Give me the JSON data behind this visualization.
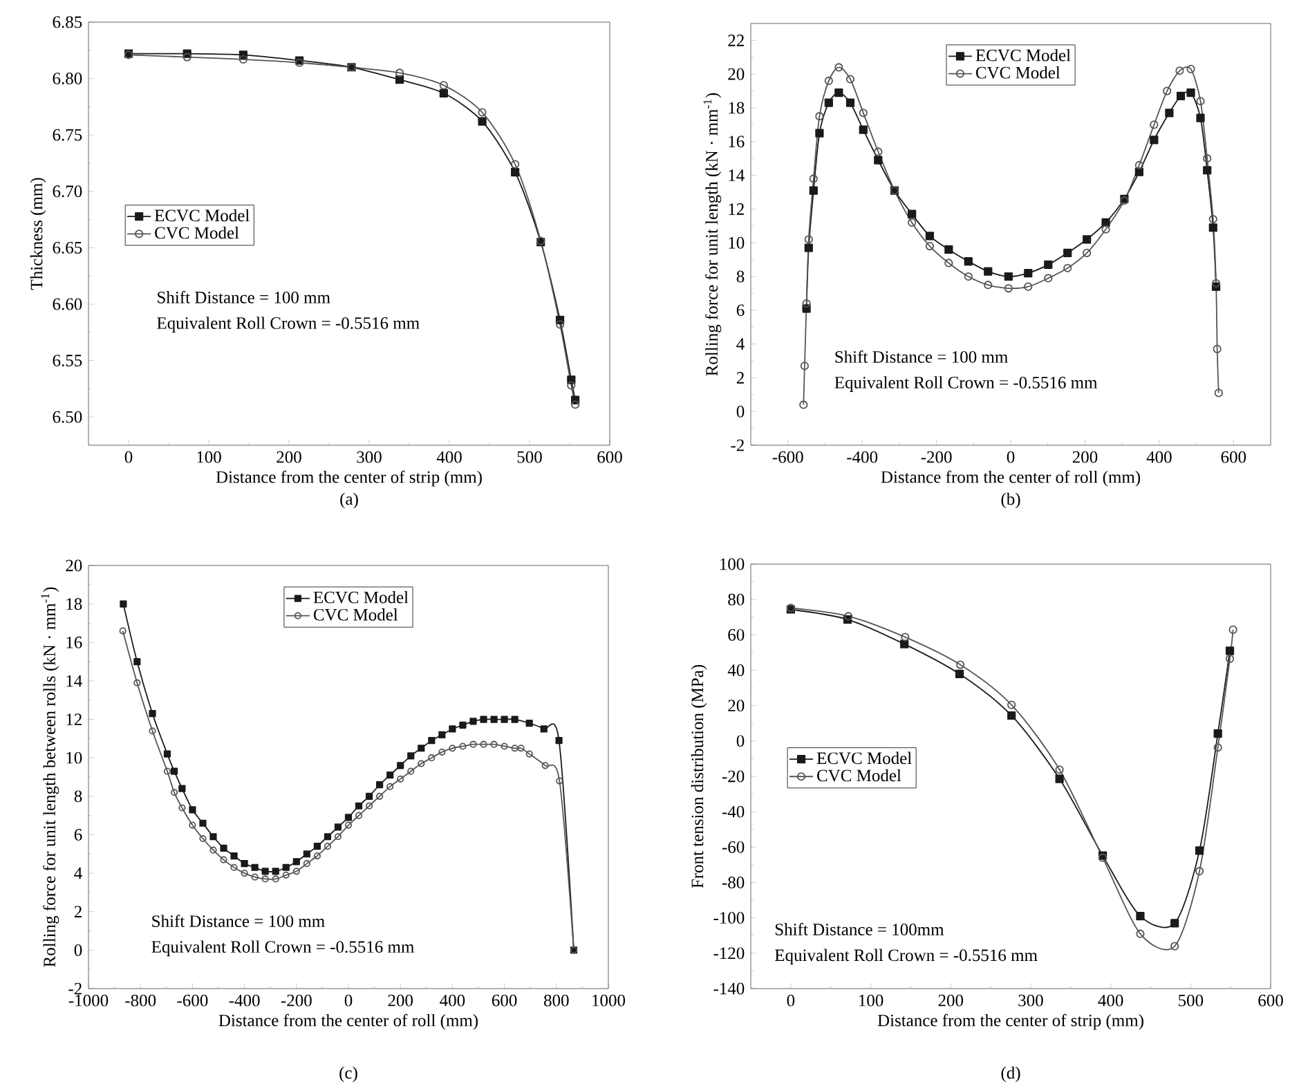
{
  "chart_data": [
    {
      "type": "line",
      "xlabel": "Distance from the center of strip (mm)",
      "ylabel": "Thickness (mm)",
      "xlim": [
        -50,
        600
      ],
      "xticks": [
        0,
        100,
        200,
        300,
        400,
        500,
        600
      ],
      "ylim": [
        6.475,
        6.85
      ],
      "yticks": [
        {
          "value": 6.5,
          "label": "6.50"
        },
        {
          "value": 6.55,
          "label": "6.55"
        },
        {
          "value": 6.6,
          "label": "6.60"
        },
        {
          "value": 6.65,
          "label": "6.65"
        },
        {
          "value": 6.7,
          "label": "6.70"
        },
        {
          "value": 6.75,
          "label": "6.75"
        },
        {
          "value": 6.8,
          "label": "6.80"
        },
        {
          "value": 6.85,
          "label": "6.85"
        }
      ],
      "legend": "center left",
      "annotations": [
        "Shift Distance = 100 mm",
        "Equivalent Roll Crown = -0.5516 mm",
        "(a)"
      ],
      "series": [
        {
          "name": "ECVC Model",
          "color": "#1a1a1a",
          "marker": "square",
          "x": [
            0,
            73,
            143,
            213,
            278,
            338,
            393,
            441,
            482,
            514,
            538,
            552,
            557
          ],
          "values": [
            6.822,
            6.822,
            6.821,
            6.816,
            6.81,
            6.799,
            6.787,
            6.762,
            6.717,
            6.655,
            6.586,
            6.533,
            6.515
          ]
        },
        {
          "name": "CVC Model",
          "color": "#555555",
          "marker": "circle",
          "x": [
            0,
            73,
            143,
            213,
            278,
            338,
            393,
            441,
            482,
            514,
            538,
            552,
            557
          ],
          "values": [
            6.821,
            6.819,
            6.817,
            6.814,
            6.81,
            6.805,
            6.794,
            6.77,
            6.724,
            6.656,
            6.582,
            6.528,
            6.511
          ]
        }
      ]
    },
    {
      "type": "line",
      "xlabel": "Distance from the center of roll (mm)",
      "ylabel": "Rolling force for unit length (kN · mm$^{-1}$)",
      "xlim": [
        -700,
        700
      ],
      "xticks": [
        -600,
        -400,
        -200,
        0,
        200,
        400,
        600
      ],
      "ylim": [
        -2,
        23
      ],
      "yticks": [
        -2,
        0,
        2,
        4,
        6,
        8,
        10,
        12,
        14,
        16,
        18,
        20,
        22
      ],
      "legend": "top",
      "annotations": [
        "Shift Distance = 100 mm",
        "Equivalent Roll Crown = -0.5516 mm",
        "(b)"
      ],
      "series": [
        {
          "name": "ECVC Model",
          "color": "#1a1a1a",
          "marker": "square",
          "x": [
            -550,
            -544,
            -531,
            -515,
            -490,
            -463,
            -432,
            -397,
            -357,
            -313,
            -266,
            -218,
            -167,
            -114,
            -61,
            -6,
            47,
            101,
            153,
            205,
            256,
            306,
            346,
            386,
            427,
            458,
            485,
            511,
            529,
            545,
            553
          ],
          "values": [
            6.1,
            9.7,
            13.1,
            16.5,
            18.3,
            18.9,
            18.3,
            16.7,
            14.9,
            13.1,
            11.7,
            10.4,
            9.6,
            8.9,
            8.3,
            8.0,
            8.2,
            8.7,
            9.4,
            10.2,
            11.2,
            12.6,
            14.2,
            16.1,
            17.7,
            18.7,
            18.9,
            17.4,
            14.3,
            10.9,
            7.4
          ]
        },
        {
          "name": "CVC Model",
          "color": "#555555",
          "marker": "circle",
          "x": [
            -558,
            -555,
            -550,
            -544,
            -531,
            -515,
            -490,
            -463,
            -432,
            -397,
            -357,
            -313,
            -266,
            -218,
            -167,
            -114,
            -61,
            -6,
            47,
            101,
            153,
            205,
            256,
            306,
            346,
            386,
            421,
            455,
            485,
            511,
            529,
            545,
            553,
            556,
            560
          ],
          "values": [
            0.4,
            2.7,
            6.4,
            10.2,
            13.8,
            17.5,
            19.6,
            20.4,
            19.7,
            17.7,
            15.4,
            13.1,
            11.2,
            9.8,
            8.8,
            8.0,
            7.5,
            7.3,
            7.4,
            7.9,
            8.5,
            9.4,
            10.8,
            12.5,
            14.6,
            17.0,
            19.0,
            20.2,
            20.3,
            18.4,
            15.0,
            11.4,
            7.6,
            3.7,
            1.1
          ]
        }
      ]
    },
    {
      "type": "line",
      "xlabel": "Distance from the center of roll (mm)",
      "ylabel": "Rolling force for unit length between rolls (kN · mm$^{-1}$)",
      "xlim": [
        -1000,
        1000
      ],
      "xticks": [
        -1000,
        -800,
        -600,
        -400,
        -200,
        0,
        200,
        400,
        600,
        800,
        1000
      ],
      "ylim": [
        -2,
        20
      ],
      "yticks": [
        -2,
        0,
        2,
        4,
        6,
        8,
        10,
        12,
        14,
        16,
        18,
        20
      ],
      "legend": "top",
      "annotations": [
        "Shift Distance = 100 mm",
        "Equivalent Roll Crown = -0.5516 mm",
        "(c)"
      ],
      "series": [
        {
          "name": "ECVC Model",
          "color": "#1a1a1a",
          "marker": "square",
          "x": [
            -866,
            -813,
            -754,
            -697,
            -670,
            -640,
            -600,
            -560,
            -520,
            -480,
            -440,
            -400,
            -360,
            -320,
            -280,
            -240,
            -200,
            -160,
            -120,
            -80,
            -40,
            0,
            40,
            80,
            120,
            160,
            200,
            240,
            280,
            320,
            360,
            400,
            440,
            480,
            520,
            560,
            600,
            640,
            696,
            752,
            810,
            867
          ],
          "values": [
            18.0,
            15.0,
            12.3,
            10.2,
            9.3,
            8.4,
            7.3,
            6.6,
            5.9,
            5.3,
            4.9,
            4.5,
            4.3,
            4.1,
            4.1,
            4.3,
            4.6,
            5.0,
            5.4,
            5.9,
            6.4,
            6.9,
            7.5,
            8.0,
            8.6,
            9.1,
            9.6,
            10.1,
            10.5,
            10.9,
            11.2,
            11.5,
            11.7,
            11.9,
            12.0,
            12.0,
            12.0,
            12.0,
            11.8,
            11.5,
            10.9,
            0.0
          ]
        },
        {
          "name": "CVC Model",
          "color": "#555555",
          "marker": "circle",
          "x": [
            -868,
            -813,
            -754,
            -697,
            -670,
            -640,
            -600,
            -560,
            -520,
            -480,
            -440,
            -400,
            -360,
            -320,
            -280,
            -240,
            -200,
            -160,
            -120,
            -80,
            -40,
            0,
            40,
            80,
            120,
            160,
            200,
            240,
            280,
            320,
            360,
            400,
            440,
            480,
            520,
            560,
            600,
            640,
            664,
            696,
            757,
            812,
            867
          ],
          "values": [
            16.6,
            13.9,
            11.4,
            9.3,
            8.2,
            7.4,
            6.5,
            5.8,
            5.2,
            4.7,
            4.3,
            4.0,
            3.8,
            3.7,
            3.7,
            3.9,
            4.1,
            4.5,
            4.9,
            5.4,
            5.9,
            6.5,
            7.0,
            7.5,
            8.0,
            8.5,
            8.9,
            9.3,
            9.7,
            10.0,
            10.3,
            10.5,
            10.6,
            10.7,
            10.7,
            10.7,
            10.6,
            10.5,
            10.5,
            10.2,
            9.6,
            8.8,
            0.0
          ]
        }
      ]
    },
    {
      "type": "line",
      "xlabel": "Distance from the center of strip (mm)",
      "ylabel": "Front tension distribution (MPa)",
      "xlim": [
        -50,
        600
      ],
      "xticks": [
        0,
        100,
        200,
        300,
        400,
        500,
        600
      ],
      "ylim": [
        -140,
        100
      ],
      "yticks": [
        -140,
        -120,
        -100,
        -80,
        -60,
        -40,
        -20,
        0,
        20,
        40,
        60,
        80,
        100
      ],
      "legend": "center left",
      "annotations": [
        "Shift Distance = 100mm",
        "Equivalent Roll Crown = -0.5516 mm",
        "(d)"
      ],
      "series": [
        {
          "name": "ECVC Model",
          "color": "#1a1a1a",
          "marker": "square",
          "x": [
            0,
            71,
            142,
            211,
            276,
            336,
            390,
            437,
            480,
            511,
            534,
            549
          ],
          "values": [
            74.4,
            68.7,
            54.8,
            37.9,
            14.4,
            -21.4,
            -64.8,
            -99,
            -103,
            -62,
            4.2,
            51
          ]
        },
        {
          "name": "CVC Model",
          "color": "#555555",
          "marker": "circle",
          "x": [
            0,
            72,
            143,
            212,
            276,
            336,
            390,
            437,
            480,
            511,
            534,
            549,
            553
          ],
          "values": [
            75.2,
            70.5,
            58.7,
            43.1,
            20.4,
            -16.2,
            -66,
            -109,
            -116,
            -73.6,
            -3.7,
            46.5,
            62.9
          ]
        }
      ]
    }
  ]
}
